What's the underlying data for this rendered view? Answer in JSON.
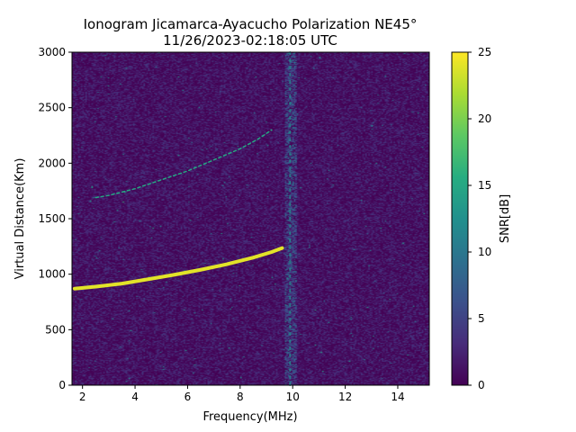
{
  "chart_data": {
    "type": "heatmap",
    "title_line1": "Ionogram Jicamarca-Ayacucho Polarization NE45°",
    "title_line2": "11/26/2023-02:18:05 UTC",
    "xlabel": "Frequency(MHz)",
    "ylabel": "Virtual Distance(Km)",
    "xlim": [
      1.6,
      15.2
    ],
    "ylim": [
      0,
      3000
    ],
    "xticks": [
      2,
      4,
      6,
      8,
      10,
      12,
      14
    ],
    "yticks": [
      0,
      500,
      1000,
      1500,
      2000,
      2500,
      3000
    ],
    "colorbar": {
      "label": "SNR[dB]",
      "range": [
        0,
        25
      ],
      "ticks": [
        0,
        5,
        10,
        15,
        20,
        25
      ],
      "colormap": "viridis"
    },
    "traces": [
      {
        "description": "strong O-mode echo",
        "snr_db": 24,
        "points": [
          [
            1.7,
            870
          ],
          [
            2.5,
            888
          ],
          [
            3.5,
            915
          ],
          [
            4.5,
            955
          ],
          [
            5.5,
            995
          ],
          [
            6.5,
            1040
          ],
          [
            7.5,
            1090
          ],
          [
            8.5,
            1150
          ],
          [
            9.2,
            1200
          ],
          [
            9.6,
            1235
          ]
        ]
      },
      {
        "description": "faint second-hop echo",
        "snr_db": 15,
        "points": [
          [
            2.5,
            1690
          ],
          [
            3.0,
            1710
          ],
          [
            4.0,
            1770
          ],
          [
            5.0,
            1850
          ],
          [
            6.0,
            1930
          ],
          [
            7.0,
            2030
          ],
          [
            8.0,
            2130
          ],
          [
            8.7,
            2220
          ],
          [
            9.2,
            2300
          ]
        ]
      },
      {
        "description": "interference band near 9.9 MHz",
        "snr_db": 12,
        "points": [
          [
            9.9,
            0
          ],
          [
            9.9,
            3000
          ]
        ]
      }
    ],
    "background_snr_db": [
      0,
      3
    ]
  }
}
